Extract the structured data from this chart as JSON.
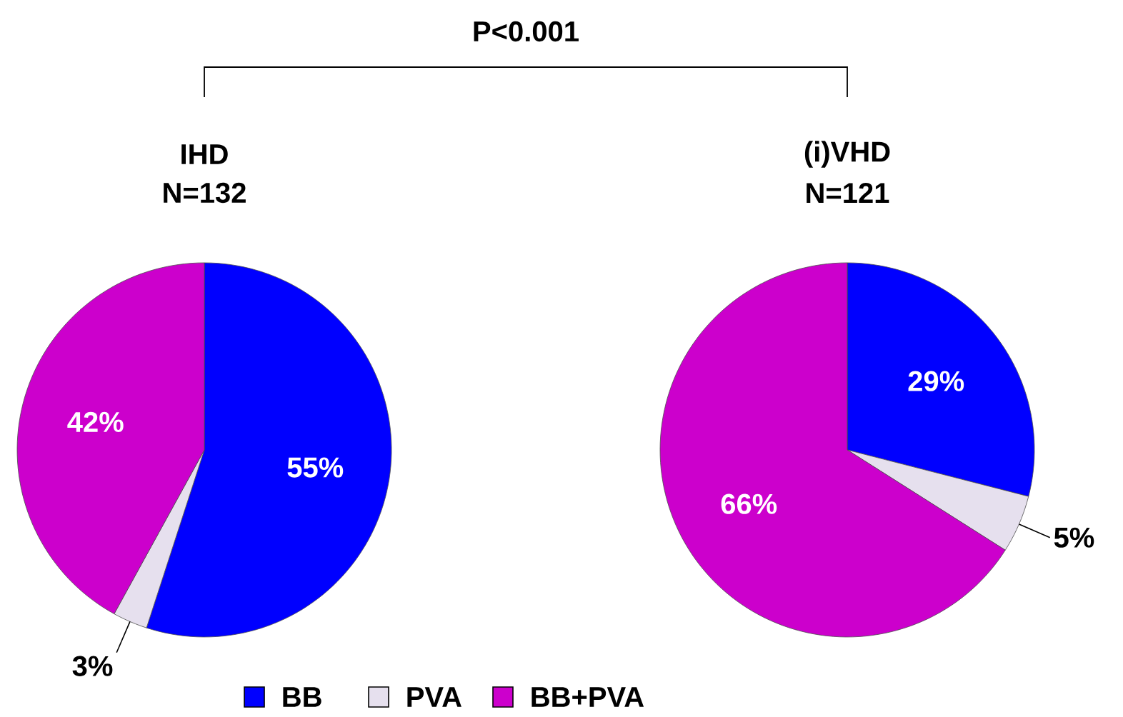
{
  "chart_data": [
    {
      "type": "pie",
      "title": "IHD",
      "subtitle": "N=132",
      "categories": [
        "BB",
        "PVA",
        "BB+PVA"
      ],
      "values": [
        55,
        3,
        42
      ],
      "colors": [
        "#0000ff",
        "#e6e0ee",
        "#cc00cc"
      ],
      "value_labels": [
        "55%",
        "3%",
        "42%"
      ],
      "legend": "bottom",
      "annotations": [
        "P<0.001"
      ]
    },
    {
      "type": "pie",
      "title": "(i)VHD",
      "subtitle": "N=121",
      "categories": [
        null,
        null,
        null
      ],
      "values": [
        29,
        5,
        66
      ],
      "colors": [
        "#0000ff",
        "#e6e0ee",
        "#cc00cc"
      ],
      "value_labels": [
        "29%",
        "5%",
        "66%"
      ]
    }
  ]
}
